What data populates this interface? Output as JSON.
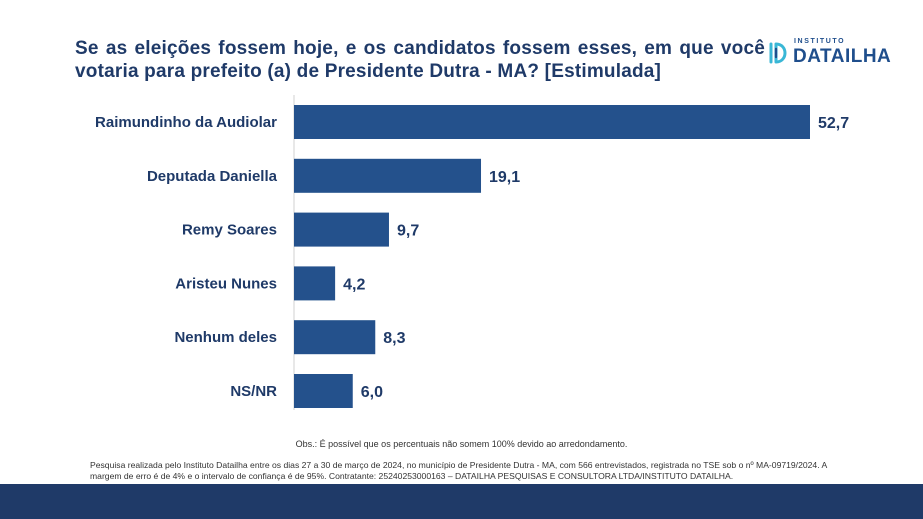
{
  "title": "Se as eleições fossem hoje, e os candidatos fossem esses, em que você votaria para prefeito (a) de Presidente Dutra - MA? [Estimulada]",
  "logo": {
    "small_text": "INSTITUTO",
    "big_text": "DATAILHA",
    "color": "#1f4e8c",
    "accent": "#39b7d6"
  },
  "chart_data": {
    "type": "bar",
    "orientation": "horizontal",
    "title": "Se as eleições fossem hoje, e os candidatos fossem esses, em que você votaria para prefeito (a) de Presidente Dutra - MA? [Estimulada]",
    "categories": [
      "Raimundinho da Audiolar",
      "Deputada Daniella",
      "Remy Soares",
      "Aristeu Nunes",
      "Nenhum deles",
      "NS/NR"
    ],
    "values": [
      52.7,
      19.1,
      9.7,
      4.2,
      8.3,
      6.0
    ],
    "value_labels": [
      "52,7",
      "19,1",
      "9,7",
      "4,2",
      "8,3",
      "6,0"
    ],
    "xlim": [
      0,
      52.7
    ],
    "grid": false,
    "bar_color": "#24518c"
  },
  "notes": {
    "obs": "Obs.: É possível que os percentuais não somem 100% devido ao arredondamento.",
    "methodology": "Pesquisa realizada pelo Instituto Datailha entre os dias 27 a 30 de março de 2024, no município de Presidente Dutra - MA, com 566 entrevistados, registrada no TSE sob o nº MA-09719/2024. A margem de erro é de 4% e o intervalo de confiança é de 95%.  Contratante: 25240253000163 – DATAILHA PESQUISAS E CONSULTORA LTDA/INSTITUTO DATAILHA."
  },
  "footer_color": "#1f3a68"
}
